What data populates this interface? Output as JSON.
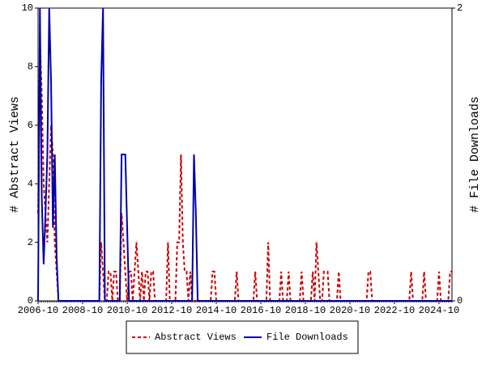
{
  "chart_data": {
    "type": "line",
    "categories": [
      "2006-10",
      null,
      null,
      null,
      null,
      null,
      null,
      null,
      null,
      null,
      null,
      null,
      null,
      null,
      null,
      null,
      null,
      null,
      null,
      null,
      null,
      null,
      null,
      null,
      "2008-10",
      null,
      null,
      null,
      null,
      null,
      null,
      null,
      null,
      null,
      null,
      null,
      null,
      null,
      null,
      null,
      null,
      null,
      null,
      null,
      null,
      null,
      null,
      null,
      "2010-10",
      null,
      null,
      null,
      null,
      null,
      null,
      null,
      null,
      null,
      null,
      null,
      null,
      null,
      null,
      null,
      null,
      null,
      null,
      null,
      null,
      null,
      null,
      null,
      "2012-10",
      null,
      null,
      null,
      null,
      null,
      null,
      null,
      null,
      null,
      null,
      null,
      null,
      null,
      null,
      null,
      null,
      null,
      null,
      null,
      null,
      null,
      null,
      null,
      "2014-10",
      null,
      null,
      null,
      null,
      null,
      null,
      null,
      null,
      null,
      null,
      null,
      null,
      null,
      null,
      null,
      null,
      null,
      null,
      null,
      null,
      null,
      null,
      null,
      "2016-10",
      null,
      null,
      null,
      null,
      null,
      null,
      null,
      null,
      null,
      null,
      null,
      null,
      null,
      null,
      null,
      null,
      null,
      null,
      null,
      null,
      null,
      null,
      null,
      "2018-10",
      null,
      null,
      null,
      null,
      null,
      null,
      null,
      null,
      null,
      null,
      null,
      null,
      null,
      null,
      null,
      null,
      null,
      null,
      null,
      null,
      null,
      null,
      null,
      "2020-10",
      null,
      null,
      null,
      null,
      null,
      null,
      null,
      null,
      null,
      null,
      null,
      null,
      null,
      null,
      null,
      null,
      null,
      null,
      null,
      null,
      null,
      null,
      null,
      "2022-10",
      null,
      null,
      null,
      null,
      null,
      null,
      null,
      null,
      null,
      null,
      null,
      null,
      null,
      null,
      null,
      null,
      null,
      null,
      null,
      null,
      null,
      null,
      null,
      "2024-10",
      null,
      null,
      null,
      null,
      null,
      null,
      null
    ],
    "series": [
      {
        "name": "Abstract Views",
        "color": "#cc0000",
        "dash": true,
        "values": [
          3,
          9,
          7,
          4,
          3,
          2,
          4,
          6,
          5,
          2,
          1,
          0,
          0,
          0,
          0,
          0,
          0,
          0,
          0,
          0,
          0,
          0,
          0,
          0,
          0,
          0,
          0,
          0,
          0,
          0,
          0,
          0,
          0,
          0,
          2,
          1,
          0,
          0,
          1,
          1,
          0,
          1,
          1,
          0,
          0,
          3,
          2,
          1,
          0,
          1,
          1,
          0,
          1,
          2,
          1,
          0,
          1,
          0,
          1,
          1,
          0,
          1,
          1,
          0,
          0,
          0,
          0,
          0,
          0,
          0,
          2,
          0,
          0,
          0,
          0,
          2,
          2,
          5,
          2,
          1,
          1,
          0,
          1,
          0,
          0,
          0,
          0,
          0,
          0,
          0,
          0,
          0,
          0,
          0,
          1,
          1,
          0,
          0,
          0,
          0,
          0,
          0,
          0,
          0,
          0,
          0,
          0,
          1,
          0,
          0,
          0,
          0,
          0,
          0,
          0,
          0,
          0,
          1,
          0,
          0,
          0,
          0,
          0,
          0,
          2,
          0,
          0,
          0,
          0,
          0,
          0,
          1,
          0,
          0,
          0,
          1,
          0,
          0,
          0,
          0,
          0,
          0,
          1,
          0,
          0,
          0,
          0,
          0,
          1,
          0,
          2,
          1,
          0,
          0,
          1,
          1,
          1,
          0,
          0,
          0,
          0,
          0,
          1,
          0,
          0,
          0,
          0,
          0,
          0,
          0,
          0,
          0,
          0,
          0,
          0,
          0,
          0,
          0,
          1,
          1,
          0,
          0,
          0,
          0,
          0,
          0,
          0,
          0,
          0,
          0,
          0,
          0,
          0,
          0,
          0,
          0,
          0,
          0,
          0,
          0,
          0,
          1,
          0,
          0,
          0,
          0,
          0,
          0,
          1,
          0,
          0,
          0,
          0,
          0,
          0,
          0,
          1,
          0,
          0,
          0,
          0,
          0,
          1,
          1
        ]
      },
      {
        "name": "File Downloads",
        "color": "#0000aa",
        "dash": false,
        "axis": "y2",
        "values": [
          0,
          2,
          0.7,
          0.25,
          0.6,
          1,
          2,
          1.5,
          0.5,
          1,
          0.3,
          0,
          0,
          0,
          0,
          0,
          0,
          0,
          0,
          0,
          0,
          0,
          0,
          0,
          0,
          0,
          0,
          0,
          0,
          0,
          0,
          0,
          0,
          0,
          1.5,
          2,
          0,
          0,
          0,
          0,
          0,
          0,
          0,
          0,
          0,
          1,
          1,
          1,
          0.5,
          0,
          0,
          0,
          0,
          0,
          0,
          0,
          0,
          0,
          0,
          0,
          0,
          0,
          0,
          0,
          0,
          0,
          0,
          0,
          0,
          0,
          0,
          0,
          0,
          0,
          0,
          0,
          0,
          0,
          0,
          0,
          0,
          0,
          0,
          0,
          1,
          0.6,
          0,
          0,
          0,
          0,
          0,
          0,
          0,
          0,
          0,
          0,
          0,
          0,
          0,
          0,
          0,
          0,
          0,
          0,
          0,
          0,
          0,
          0,
          0,
          0,
          0,
          0,
          0,
          0,
          0,
          0,
          0,
          0,
          0,
          0,
          0,
          0,
          0,
          0,
          0,
          0,
          0,
          0,
          0,
          0,
          0,
          0,
          0,
          0,
          0,
          0,
          0,
          0,
          0,
          0,
          0,
          0,
          0,
          0,
          0,
          0,
          0,
          0,
          0,
          0,
          0,
          0,
          0,
          0,
          0,
          0,
          0,
          0,
          0,
          0,
          0,
          0,
          0,
          0,
          0,
          0,
          0,
          0,
          0,
          0,
          0,
          0,
          0,
          0,
          0,
          0,
          0,
          0,
          0,
          0,
          0,
          0,
          0,
          0,
          0,
          0,
          0,
          0,
          0,
          0,
          0,
          0,
          0,
          0,
          0,
          0,
          0,
          0,
          0,
          0,
          0,
          0,
          0,
          0,
          0,
          0,
          0,
          0,
          0,
          0,
          0,
          0,
          0,
          0,
          0,
          0,
          0,
          0,
          0,
          0,
          0,
          0,
          0,
          0
        ]
      }
    ],
    "ylabel": "# Abstract Views",
    "y2label": "# File Downloads",
    "ylim": [
      0,
      10
    ],
    "yticks": [
      0,
      2,
      4,
      6,
      8,
      10
    ],
    "y2lim": [
      0,
      2
    ],
    "y2ticks": [
      0,
      2
    ],
    "legend": "bottom"
  }
}
